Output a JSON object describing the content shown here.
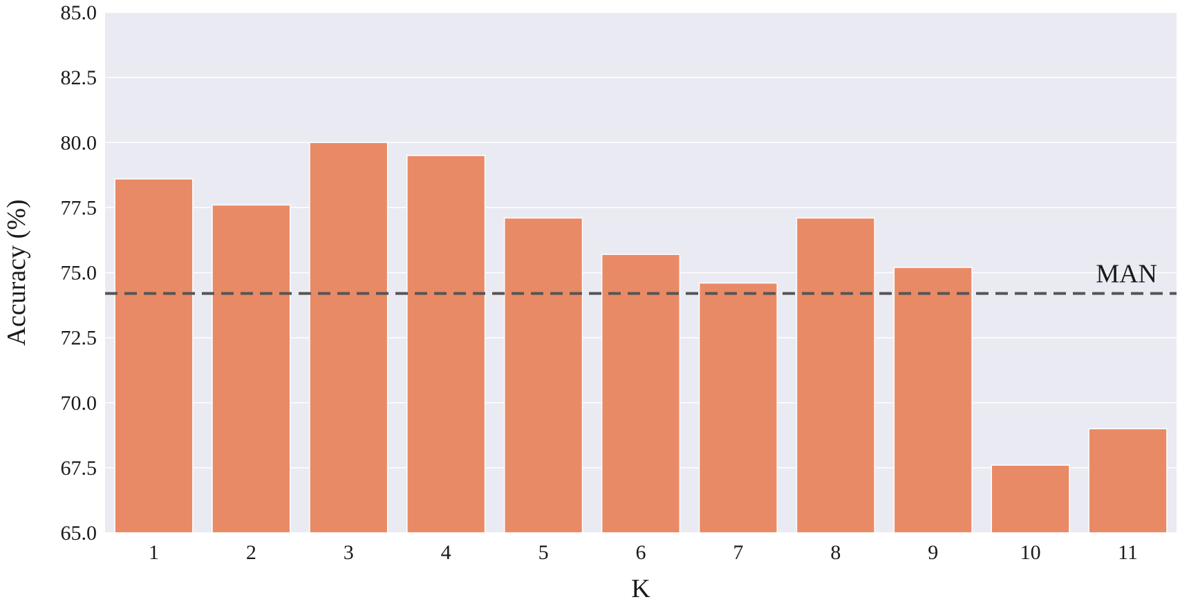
{
  "chart_data": {
    "type": "bar",
    "categories": [
      "1",
      "2",
      "3",
      "4",
      "5",
      "6",
      "7",
      "8",
      "9",
      "10",
      "11"
    ],
    "values": [
      78.6,
      77.6,
      80.0,
      79.5,
      77.1,
      75.7,
      74.6,
      77.1,
      75.2,
      67.6,
      69.0
    ],
    "xlabel": "K",
    "ylabel": "Accuracy (%)",
    "ylim": [
      65.0,
      85.0
    ],
    "yticks": [
      "65.0",
      "67.5",
      "70.0",
      "72.5",
      "75.0",
      "77.5",
      "80.0",
      "82.5",
      "85.0"
    ],
    "grid": true,
    "bar_color": "#E98A66",
    "background_color": "#EAEAF2",
    "reference_line": {
      "label": "MAN",
      "value": 74.2,
      "style": "dashed",
      "color": "#555555"
    }
  }
}
